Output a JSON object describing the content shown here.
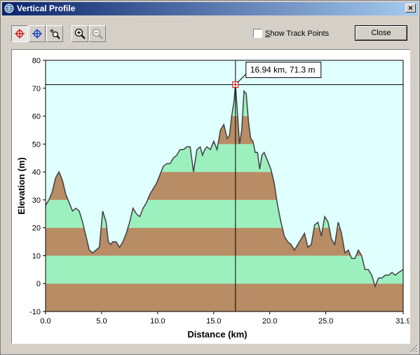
{
  "window": {
    "title": "Vertical Profile",
    "close_glyph": "×"
  },
  "toolbar": {
    "buttons": [
      {
        "name": "cursor-tool-button",
        "icon": "red-crosshair-icon",
        "pressed": true
      },
      {
        "name": "crosshair-tool-button",
        "icon": "blue-crosshair-icon",
        "pressed": false
      },
      {
        "name": "zoom-region-button",
        "icon": "zoom-region-icon",
        "pressed": false
      },
      {
        "name": "zoom-in-button",
        "icon": "zoom-in-icon",
        "pressed": false
      },
      {
        "name": "zoom-out-button",
        "icon": "zoom-out-icon",
        "pressed": false,
        "disabled": true
      }
    ],
    "show_track_points": {
      "label_accel": "S",
      "label_rest": "how Track Points",
      "checked": false
    },
    "close_label": "Close"
  },
  "colors": {
    "sky": "#e0ffff",
    "band_light": "#9cf0be",
    "band_dark": "#b88c64",
    "line": "#404040"
  },
  "chart_data": {
    "type": "area",
    "xlabel": "Distance  (km)",
    "ylabel": "Elevation (m)",
    "xlim": [
      0,
      31.9
    ],
    "ylim": [
      -10,
      80
    ],
    "x_ticks": [
      "0.0",
      "5.0",
      "10.0",
      "15.0",
      "20.0",
      "25.0",
      "31.9"
    ],
    "y_ticks": [
      "-10",
      "0",
      "10",
      "20",
      "30",
      "40",
      "50",
      "60",
      "70",
      "80"
    ],
    "band_step": 10,
    "cursor": {
      "x": 16.94,
      "y": 71.3,
      "label": "16.94 km, 71.3 m"
    },
    "x": [
      0,
      0.3,
      0.6,
      0.9,
      1.2,
      1.5,
      1.8,
      2.1,
      2.4,
      2.7,
      3.0,
      3.3,
      3.6,
      3.9,
      4.2,
      4.5,
      4.8,
      5.1,
      5.4,
      5.6,
      5.8,
      6.0,
      6.3,
      6.6,
      6.9,
      7.2,
      7.5,
      7.8,
      8.1,
      8.4,
      8.7,
      9.0,
      9.3,
      9.6,
      9.9,
      10.2,
      10.5,
      10.8,
      11.1,
      11.4,
      11.7,
      12.0,
      12.3,
      12.6,
      12.9,
      13.2,
      13.5,
      13.8,
      14.0,
      14.2,
      14.4,
      14.7,
      15.0,
      15.3,
      15.6,
      15.9,
      16.2,
      16.4,
      16.6,
      16.8,
      16.94,
      17.1,
      17.3,
      17.5,
      17.7,
      17.9,
      18.1,
      18.3,
      18.5,
      18.7,
      18.9,
      19.1,
      19.3,
      19.5,
      19.8,
      20.1,
      20.4,
      20.7,
      21.0,
      21.3,
      21.6,
      21.9,
      22.2,
      22.5,
      22.8,
      23.1,
      23.4,
      23.7,
      24.0,
      24.3,
      24.6,
      24.9,
      25.2,
      25.5,
      25.8,
      26.1,
      26.4,
      26.7,
      27.0,
      27.3,
      27.6,
      27.9,
      28.2,
      28.5,
      28.8,
      29.1,
      29.4,
      29.7,
      30.0,
      30.3,
      30.6,
      30.9,
      31.2,
      31.5,
      31.9
    ],
    "y": [
      28,
      30,
      33,
      38,
      40,
      37,
      32,
      29,
      26,
      27,
      26,
      22,
      17,
      12,
      11,
      12,
      13,
      26,
      22,
      15,
      14,
      15,
      15,
      13,
      15,
      18,
      22,
      27,
      25,
      24,
      27,
      29,
      32,
      34,
      36,
      39,
      42,
      43,
      43,
      45,
      46,
      48,
      48,
      49,
      49,
      40,
      48,
      49,
      46,
      48,
      49,
      48,
      51,
      48,
      55,
      57,
      52,
      53,
      60,
      65,
      71.3,
      62,
      50,
      55,
      69,
      68,
      58,
      52,
      51,
      47,
      47,
      41,
      46,
      47,
      44,
      41,
      36,
      28,
      22,
      17,
      15,
      14,
      12,
      14,
      16,
      18,
      13,
      14,
      21,
      22,
      17,
      24,
      22,
      16,
      14,
      22,
      18,
      11,
      12,
      9,
      9,
      12,
      10,
      5,
      5,
      3,
      -1,
      2,
      2,
      3,
      3,
      4,
      3,
      4,
      5
    ]
  }
}
